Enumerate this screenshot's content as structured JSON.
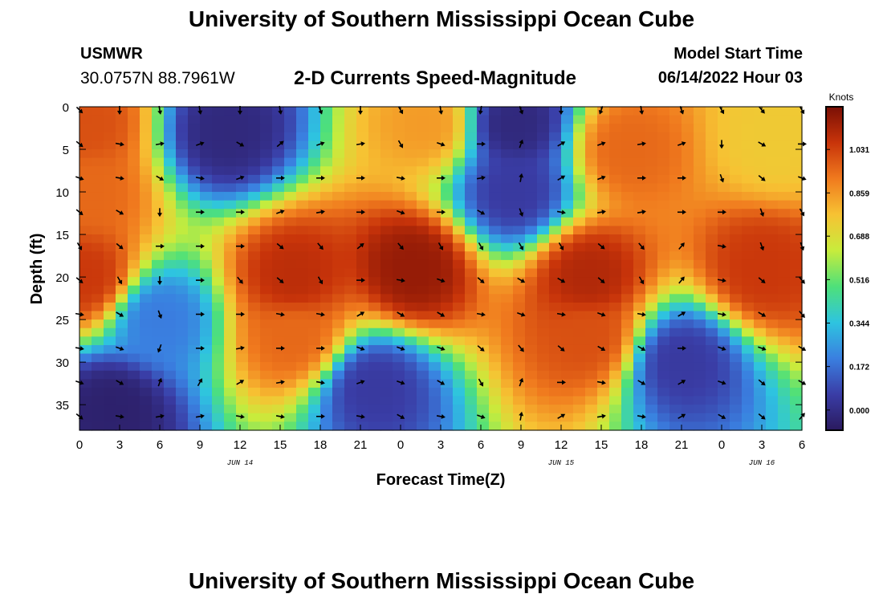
{
  "header": {
    "title": "University of Southern Mississippi Ocean Cube",
    "station": "USMWR",
    "coords": "30.0757N  88.7961W",
    "subtitle": "2-D Currents Speed-Magnitude",
    "model_start_label": "Model Start Time",
    "model_start_value": "06/14/2022 Hour 03"
  },
  "footer": {
    "title": "University of Southern Mississippi Ocean Cube"
  },
  "colors": {
    "colormap": [
      "#2a1a5e",
      "#3a3da6",
      "#3a7fe0",
      "#2ec4e0",
      "#4ee07a",
      "#c8ec3c",
      "#f7c233",
      "#f07a1e",
      "#c8340a",
      "#7a0f05"
    ],
    "arrow": "#000000"
  },
  "chart_data": {
    "type": "heatmap",
    "title": "2-D Currents Speed-Magnitude",
    "xlabel": "Forecast Time(Z)",
    "ylabel": "Depth (ft)",
    "x_range_hours": [
      0,
      54
    ],
    "y_range_ft": [
      0,
      38
    ],
    "x_ticks": [
      {
        "hour": 0,
        "label": "0"
      },
      {
        "hour": 3,
        "label": "3"
      },
      {
        "hour": 6,
        "label": "6"
      },
      {
        "hour": 9,
        "label": "9"
      },
      {
        "hour": 12,
        "label": "12"
      },
      {
        "hour": 15,
        "label": "15"
      },
      {
        "hour": 18,
        "label": "18"
      },
      {
        "hour": 21,
        "label": "21"
      },
      {
        "hour": 24,
        "label": "0"
      },
      {
        "hour": 27,
        "label": "3"
      },
      {
        "hour": 30,
        "label": "6"
      },
      {
        "hour": 33,
        "label": "9"
      },
      {
        "hour": 36,
        "label": "12"
      },
      {
        "hour": 39,
        "label": "15"
      },
      {
        "hour": 42,
        "label": "18"
      },
      {
        "hour": 45,
        "label": "21"
      },
      {
        "hour": 48,
        "label": "0"
      },
      {
        "hour": 51,
        "label": "3"
      },
      {
        "hour": 54,
        "label": "6"
      }
    ],
    "y_ticks": [
      0,
      5,
      10,
      15,
      20,
      25,
      30,
      35
    ],
    "date_labels": [
      {
        "hour": 12,
        "label": "JUN 14"
      },
      {
        "hour": 36,
        "label": "JUN 15"
      },
      {
        "hour": 51,
        "label": "JUN 16"
      }
    ],
    "colorbar": {
      "unit": "Knots",
      "min": -0.08,
      "max": 1.2,
      "ticks": [
        "0.000",
        "0.172",
        "0.344",
        "0.516",
        "0.688",
        "0.859",
        "1.031"
      ],
      "tick_values": [
        0.0,
        0.172,
        0.344,
        0.516,
        0.688,
        0.859,
        1.031
      ]
    },
    "speed_features_knots": [
      {
        "hour": 0.5,
        "depth": 2,
        "value": 1.0
      },
      {
        "hour": 0.5,
        "depth": 10,
        "value": 0.95
      },
      {
        "hour": 0.5,
        "depth": 20,
        "value": 1.05
      },
      {
        "hour": 2.5,
        "depth": 35.5,
        "value": -0.05
      },
      {
        "hour": 11,
        "depth": 3,
        "value": -0.02
      },
      {
        "hour": 6,
        "depth": 25,
        "value": 0.2
      },
      {
        "hour": 16,
        "depth": 20,
        "value": 1.08
      },
      {
        "hour": 16,
        "depth": 27,
        "value": 0.95
      },
      {
        "hour": 22,
        "depth": 33,
        "value": 0.05
      },
      {
        "hour": 25,
        "depth": 19,
        "value": 1.15
      },
      {
        "hour": 26,
        "depth": 2,
        "value": 0.85
      },
      {
        "hour": 32.5,
        "depth": 2,
        "value": -0.02
      },
      {
        "hour": 32.5,
        "depth": 10,
        "value": 0.05
      },
      {
        "hour": 38,
        "depth": 20,
        "value": 1.1
      },
      {
        "hour": 38,
        "depth": 27,
        "value": 1.0
      },
      {
        "hour": 41,
        "depth": 5,
        "value": 0.95
      },
      {
        "hour": 45,
        "depth": 30,
        "value": 0.05
      },
      {
        "hour": 51,
        "depth": 19,
        "value": 1.05
      },
      {
        "hour": 52,
        "depth": 4,
        "value": 0.75
      }
    ],
    "vector_grid": {
      "hours": [
        0,
        3,
        6,
        9,
        12,
        15,
        18,
        21,
        24,
        27,
        30,
        33,
        36,
        39,
        42,
        45,
        48,
        51,
        54
      ],
      "depths_ft": [
        0,
        4,
        8,
        12,
        16,
        20,
        24,
        28,
        32,
        36
      ],
      "directions_deg": [
        [
          135,
          180,
          170,
          170,
          180,
          170,
          160,
          180,
          150,
          170,
          190,
          160,
          180,
          200,
          170,
          160,
          150,
          140,
          150
        ],
        [
          130,
          100,
          80,
          70,
          120,
          50,
          70,
          80,
          150,
          110,
          90,
          20,
          60,
          70,
          80,
          70,
          180,
          120,
          90
        ],
        [
          110,
          100,
          120,
          100,
          70,
          90,
          90,
          90,
          100,
          90,
          80,
          10,
          60,
          70,
          90,
          90,
          160,
          130,
          110
        ],
        [
          130,
          120,
          180,
          90,
          90,
          70,
          80,
          90,
          110,
          90,
          120,
          160,
          100,
          80,
          80,
          90,
          90,
          160,
          150
        ],
        [
          150,
          130,
          90,
          90,
          90,
          130,
          140,
          50,
          140,
          150,
          150,
          150,
          150,
          130,
          140,
          40,
          100,
          160,
          160
        ],
        [
          130,
          150,
          180,
          90,
          140,
          130,
          150,
          90,
          100,
          110,
          130,
          120,
          120,
          130,
          150,
          40,
          100,
          130,
          140
        ],
        [
          100,
          120,
          160,
          90,
          90,
          100,
          100,
          60,
          120,
          120,
          100,
          110,
          100,
          110,
          100,
          60,
          100,
          120,
          140
        ],
        [
          100,
          110,
          200,
          90,
          80,
          90,
          90,
          110,
          110,
          110,
          130,
          140,
          130,
          120,
          120,
          90,
          110,
          110,
          120
        ],
        [
          110,
          120,
          20,
          30,
          60,
          80,
          100,
          70,
          110,
          120,
          150,
          20,
          90,
          100,
          120,
          60,
          110,
          130,
          120
        ],
        [
          130,
          100,
          80,
          80,
          100,
          100,
          90,
          100,
          120,
          100,
          110,
          10,
          60,
          80,
          100,
          60,
          120,
          130,
          40
        ]
      ]
    }
  }
}
